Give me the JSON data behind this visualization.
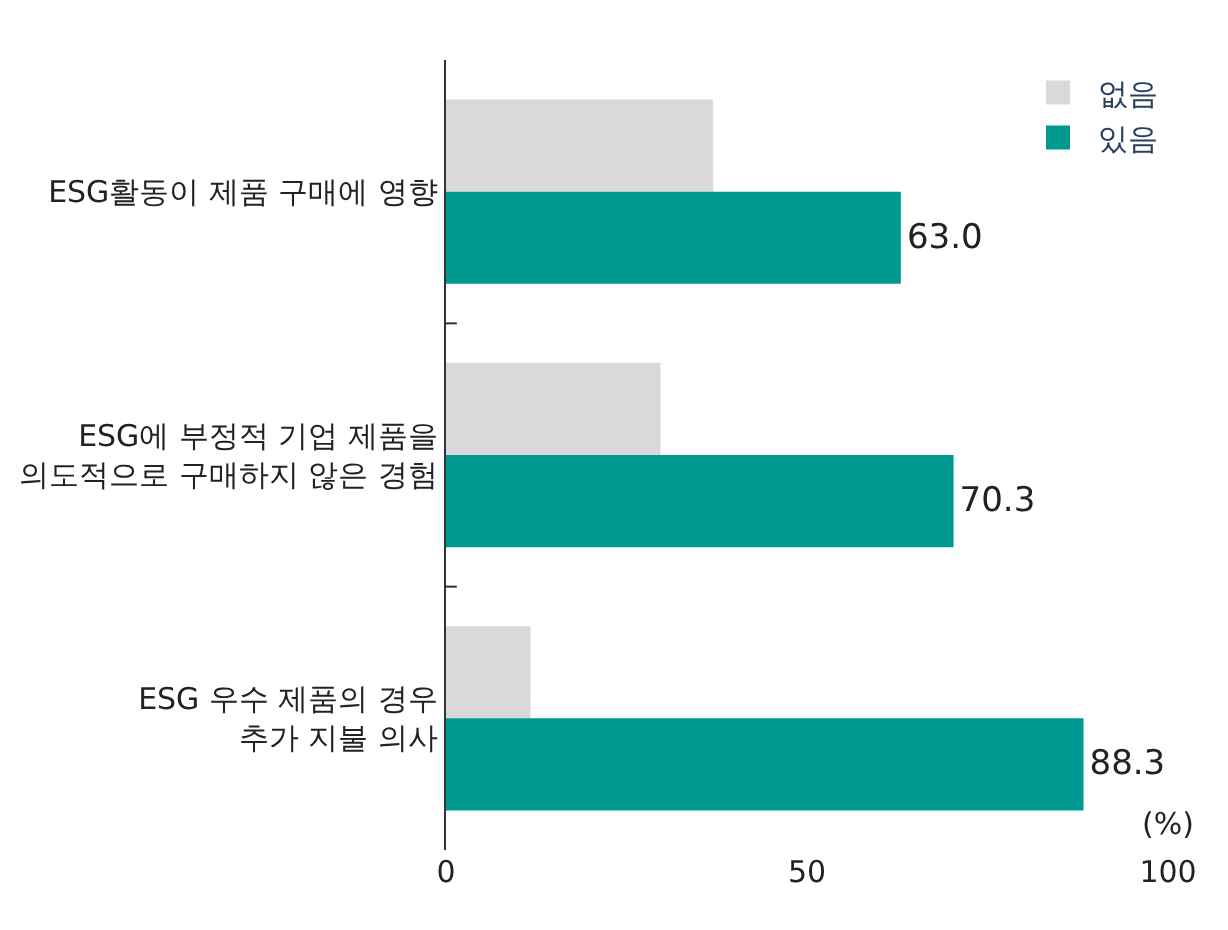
{
  "chart_data": {
    "type": "bar",
    "orientation": "horizontal",
    "categories": [
      "ESG활동이 제품 구매에 영향",
      "ESG에 부정적 기업 제품을\n의도적으로 구매하지 않은 경험",
      "ESG 우수 제품의 경우\n추가 지불 의사"
    ],
    "series": [
      {
        "name": "없음",
        "color": "#d9d9d9",
        "values": [
          37.0,
          29.7,
          11.7
        ]
      },
      {
        "name": "있음",
        "color": "#009990",
        "values": [
          63.0,
          70.3,
          88.3
        ],
        "value_labels": [
          "63.0",
          "70.3",
          "88.3"
        ]
      }
    ],
    "xlim": [
      0,
      100
    ],
    "xticks": [
      0,
      50,
      100
    ],
    "legend": "top right",
    "annotations": [
      "(%)"
    ]
  }
}
